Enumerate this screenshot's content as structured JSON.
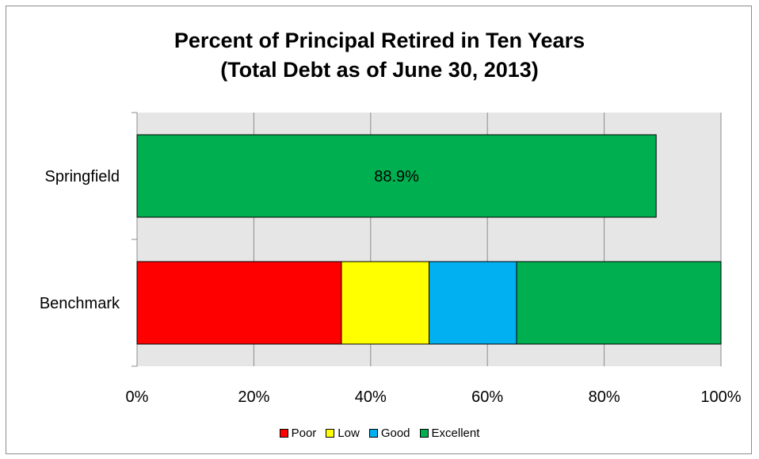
{
  "chart_data": {
    "type": "bar",
    "orientation": "horizontal",
    "stacked": true,
    "title": "Percent of Principal Retired in Ten Years",
    "subtitle": "(Total Debt as of June 30, 2013)",
    "categories": [
      "Springfield",
      "Benchmark"
    ],
    "xlim": [
      0,
      100
    ],
    "x_ticks": [
      "0%",
      "20%",
      "40%",
      "60%",
      "80%",
      "100%"
    ],
    "x_tick_values": [
      0,
      20,
      40,
      60,
      80,
      100
    ],
    "grid": true,
    "legend_position": "bottom",
    "bars": [
      {
        "category": "Springfield",
        "segments": [
          {
            "value": 88.9,
            "color": "#00b050",
            "label": "88.9%"
          }
        ]
      },
      {
        "category": "Benchmark",
        "segments": [
          {
            "series": "Poor",
            "value": 35,
            "color": "#ff0000"
          },
          {
            "series": "Low",
            "value": 15,
            "color": "#ffff00"
          },
          {
            "series": "Good",
            "value": 15,
            "color": "#00b0f0"
          },
          {
            "series": "Excellent",
            "value": 35,
            "color": "#00b050"
          }
        ]
      }
    ],
    "legend": [
      {
        "name": "Poor",
        "color": "#ff0000"
      },
      {
        "name": "Low",
        "color": "#ffff00"
      },
      {
        "name": "Good",
        "color": "#00b0f0"
      },
      {
        "name": "Excellent",
        "color": "#00b050"
      }
    ],
    "plot_background": "#e6e6e6"
  }
}
